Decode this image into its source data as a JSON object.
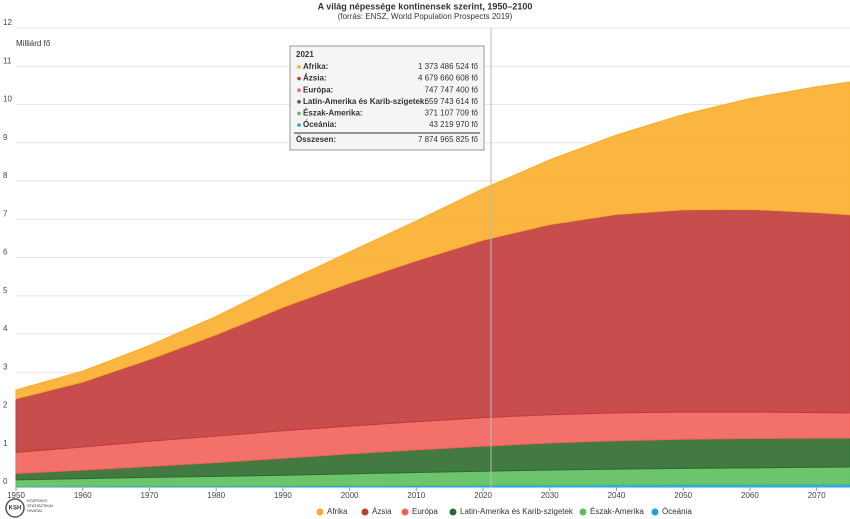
{
  "chart_data": {
    "type": "stacked-area",
    "title": "A világ népessége kontinensek szerint, 1950–2100",
    "subtitle": "(forrás: ENSZ, World Population Prospects 2019)",
    "y_label": "Milliárd fő",
    "x": [
      1950,
      1960,
      1970,
      1980,
      1990,
      2000,
      2010,
      2020,
      2030,
      2040,
      2050,
      2060,
      2070,
      2075
    ],
    "series": [
      {
        "name": "Afrika",
        "color": "#f9ae2b",
        "values": [
          0.228,
          0.284,
          0.363,
          0.476,
          0.63,
          0.811,
          1.039,
          1.341,
          1.688,
          2.077,
          2.489,
          2.897,
          3.29,
          3.47
        ]
      },
      {
        "name": "Ázsia",
        "color": "#c23b3b",
        "values": [
          1.405,
          1.7,
          2.142,
          2.65,
          3.226,
          3.741,
          4.21,
          4.641,
          4.974,
          5.189,
          5.29,
          5.3,
          5.23,
          5.18
        ]
      },
      {
        "name": "Európa",
        "color": "#f2625b",
        "values": [
          0.549,
          0.605,
          0.657,
          0.694,
          0.721,
          0.726,
          0.736,
          0.748,
          0.741,
          0.728,
          0.71,
          0.69,
          0.669,
          0.66
        ]
      },
      {
        "name": "Latin-Amerika és Karib-szigetek",
        "color": "#2e6b2e",
        "values": [
          0.169,
          0.22,
          0.287,
          0.361,
          0.443,
          0.522,
          0.591,
          0.654,
          0.706,
          0.742,
          0.762,
          0.768,
          0.761,
          0.755
        ]
      },
      {
        "name": "Észak-Amerika",
        "color": "#5cbf5c",
        "values": [
          0.173,
          0.204,
          0.231,
          0.254,
          0.28,
          0.313,
          0.343,
          0.369,
          0.394,
          0.413,
          0.425,
          0.435,
          0.445,
          0.45
        ]
      },
      {
        "name": "Óceánia",
        "color": "#1ca3e0",
        "values": [
          0.0127,
          0.0158,
          0.0197,
          0.0227,
          0.027,
          0.0312,
          0.0368,
          0.0427,
          0.0489,
          0.0547,
          0.0604,
          0.0657,
          0.07,
          0.072
        ]
      }
    ],
    "xlim": [
      1950,
      2075
    ],
    "xticks": [
      1950,
      1960,
      1970,
      1980,
      1990,
      2000,
      2010,
      2020,
      2030,
      2040,
      2050,
      2060,
      2070
    ],
    "ylim": [
      0,
      12
    ],
    "yticks": [
      0,
      1,
      2,
      3,
      4,
      5,
      6,
      7,
      8,
      9,
      10,
      11,
      12
    ],
    "grid": true,
    "tooltip": {
      "title": "2021",
      "rows": [
        {
          "label": "Afrika:",
          "value": "1 373 486 524 fő"
        },
        {
          "label": "Ázsia:",
          "value": "4 679 660 608 fő"
        },
        {
          "label": "Európa:",
          "value": "747 747 400 fő"
        },
        {
          "label": "Latin-Amerika és Karib-szigetek:",
          "value": "659 743 614 fő"
        },
        {
          "label": "Észak-Amerika:",
          "value": "371 107 709 fő"
        },
        {
          "label": "Óceánia:",
          "value": "43 219 970 fő"
        }
      ],
      "total_label": "Összesen:",
      "total_value": "7 874 965 825 fő"
    }
  },
  "logo": {
    "abbr": "KSH",
    "lines": [
      "KÖZPONTI",
      "STATISZTIKAI",
      "HIVATAL"
    ]
  }
}
